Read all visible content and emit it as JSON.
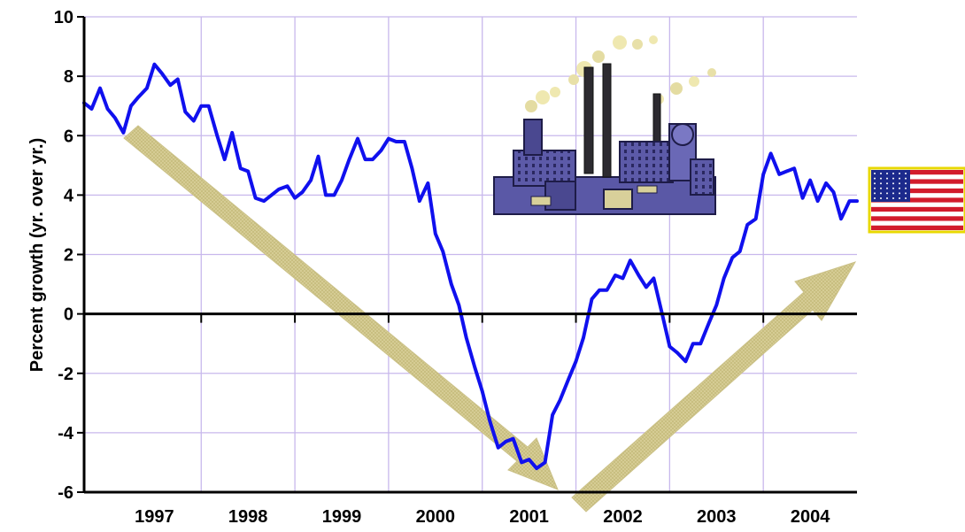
{
  "chart_data": {
    "type": "line",
    "title": "",
    "xlabel": "",
    "ylabel": "Percent growth (yr. over yr.)",
    "ylim": [
      -6,
      10
    ],
    "yticks": [
      "-6",
      "-4",
      "-2",
      "0",
      "2",
      "4",
      "6",
      "8",
      "10"
    ],
    "xlim": [
      1996.5,
      2004.75
    ],
    "categories": [
      "1997",
      "1998",
      "1999",
      "2000",
      "2001",
      "2002",
      "2003",
      "2004"
    ],
    "grid": true,
    "legend": "none",
    "colors": {
      "line": "#1010ee",
      "grid": "#c8b8ec",
      "arrow": "#d6cc92",
      "zero_line": "#000000"
    },
    "series": [
      {
        "x": [
          1996.5,
          1996.58,
          1996.67,
          1996.75,
          1996.83,
          1996.92,
          1997.0,
          1997.08,
          1997.17,
          1997.25,
          1997.33,
          1997.42,
          1997.5,
          1997.58,
          1997.67,
          1997.75,
          1997.83,
          1997.92,
          1998.0,
          1998.08,
          1998.17,
          1998.25,
          1998.33,
          1998.42,
          1998.5,
          1998.58,
          1998.67,
          1998.75,
          1998.83,
          1998.92,
          1999.0,
          1999.08,
          1999.17,
          1999.25,
          1999.33,
          1999.42,
          1999.5,
          1999.58,
          1999.67,
          1999.75,
          1999.83,
          1999.92,
          2000.0,
          2000.08,
          2000.17,
          2000.25,
          2000.33,
          2000.42,
          2000.5,
          2000.58,
          2000.67,
          2000.75,
          2000.83,
          2000.92,
          2001.0,
          2001.08,
          2001.17,
          2001.25,
          2001.33,
          2001.42,
          2001.5,
          2001.58,
          2001.67,
          2001.75,
          2001.83,
          2001.92,
          2002.0,
          2002.08,
          2002.17,
          2002.25,
          2002.33,
          2002.42,
          2002.5,
          2002.58,
          2002.67,
          2002.75,
          2002.83,
          2002.92,
          2003.0,
          2003.08,
          2003.17,
          2003.25,
          2003.33,
          2003.42,
          2003.5,
          2003.58,
          2003.67,
          2003.75,
          2003.83,
          2003.92,
          2004.0,
          2004.08,
          2004.17,
          2004.25,
          2004.33,
          2004.42,
          2004.5,
          2004.58,
          2004.67,
          2004.75
        ],
        "values": [
          7.1,
          6.9,
          7.6,
          6.9,
          6.6,
          6.1,
          7.0,
          7.3,
          7.6,
          8.4,
          8.1,
          7.7,
          7.9,
          6.8,
          6.5,
          7.0,
          7.0,
          6.0,
          5.2,
          6.1,
          4.9,
          4.8,
          3.9,
          3.8,
          4.0,
          4.2,
          4.3,
          3.9,
          4.1,
          4.5,
          5.3,
          4.0,
          4.0,
          4.5,
          5.2,
          5.9,
          5.2,
          5.2,
          5.5,
          5.9,
          5.8,
          5.8,
          4.9,
          3.8,
          4.4,
          2.7,
          2.1,
          1.0,
          0.3,
          -0.8,
          -1.8,
          -2.6,
          -3.6,
          -4.5,
          -4.3,
          -4.2,
          -5.0,
          -4.9,
          -5.2,
          -5.0,
          -3.4,
          -2.9,
          -2.2,
          -1.6,
          -0.8,
          0.5,
          0.8,
          0.8,
          1.3,
          1.2,
          1.8,
          1.3,
          0.9,
          1.2,
          0.0,
          -1.1,
          -1.3,
          -1.6,
          -1.0,
          -1.0,
          -0.3,
          0.3,
          1.2,
          1.9,
          2.1,
          3.0,
          3.2,
          4.7,
          5.4,
          4.7,
          4.8,
          4.9,
          3.9,
          4.5,
          3.8,
          4.4,
          4.1,
          3.2,
          3.8,
          3.8
        ]
      }
    ]
  },
  "icons": {
    "factory": "factory-icon",
    "flag": "us-flag-icon"
  }
}
